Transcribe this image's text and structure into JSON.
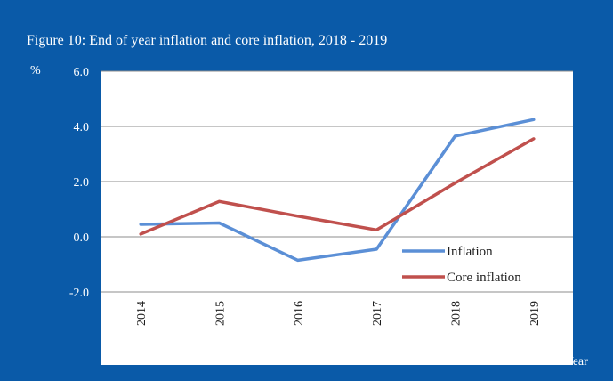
{
  "chart_data": {
    "type": "line",
    "title": "Figure 10: End of year inflation and core inflation, 2018 - 2019",
    "ylabel": "%",
    "xlabel": "Year",
    "categories": [
      "2014",
      "2015",
      "2016",
      "2017",
      "2018",
      "2019"
    ],
    "ylim": [
      -2.0,
      6.0
    ],
    "yticks": [
      "6.0",
      "4.0",
      "2.0",
      "0.0",
      "-2.0"
    ],
    "ytick_values": [
      6,
      4,
      2,
      0,
      -2
    ],
    "grid": true,
    "legend_position": "bottom-right",
    "series": [
      {
        "name": "Inflation",
        "color": "#5b8fd6",
        "values": [
          0.45,
          0.5,
          -0.85,
          -0.45,
          3.65,
          4.25
        ]
      },
      {
        "name": "Core inflation",
        "color": "#c0504d",
        "values": [
          0.1,
          1.28,
          0.75,
          0.25,
          1.95,
          3.55
        ]
      }
    ]
  }
}
